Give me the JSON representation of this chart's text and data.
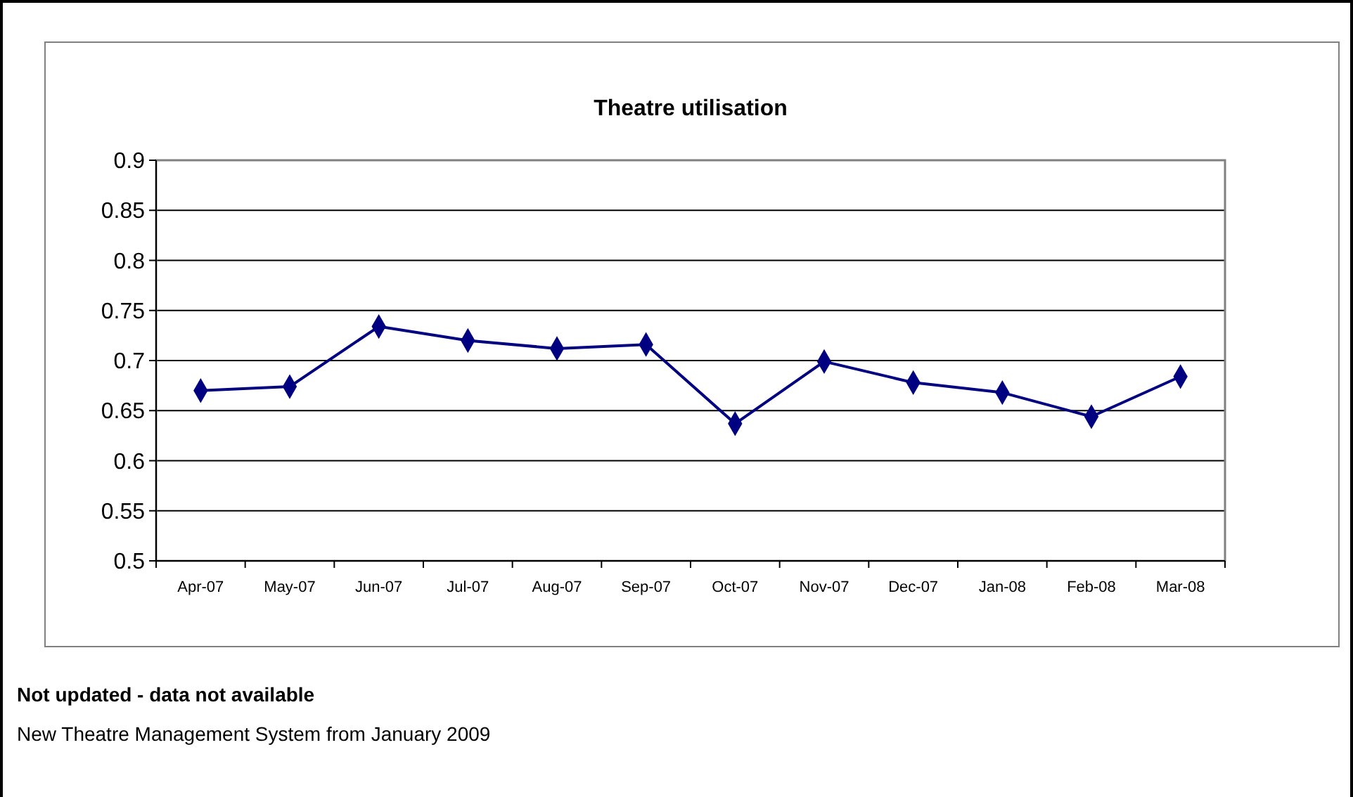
{
  "chart_data": {
    "type": "line",
    "title": "Theatre utilisation",
    "categories": [
      "Apr-07",
      "May-07",
      "Jun-07",
      "Jul-07",
      "Aug-07",
      "Sep-07",
      "Oct-07",
      "Nov-07",
      "Dec-07",
      "Jan-08",
      "Feb-08",
      "Mar-08"
    ],
    "series": [
      {
        "color": "#000080",
        "values": [
          0.67,
          0.674,
          0.734,
          0.72,
          0.712,
          0.716,
          0.637,
          0.699,
          0.678,
          0.668,
          0.644,
          0.684
        ]
      }
    ],
    "ylim": [
      0.5,
      0.9
    ],
    "yticks": [
      0.5,
      0.55,
      0.6,
      0.65,
      0.7,
      0.75,
      0.8,
      0.85,
      0.9
    ],
    "grid": "y",
    "marker": "diamond",
    "line_style": "solid",
    "annotations": [
      "Not updated - data not available",
      "New Theatre Management System from January 2009"
    ]
  }
}
